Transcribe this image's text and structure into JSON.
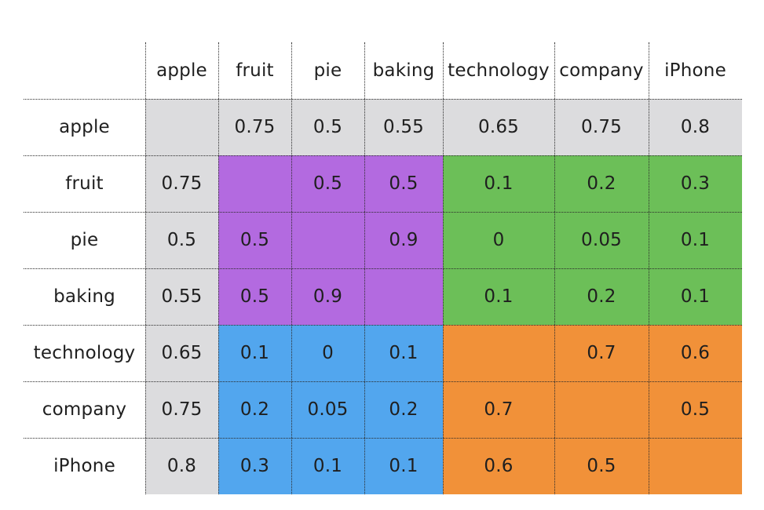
{
  "chart_data": {
    "type": "table",
    "columns": [
      "apple",
      "fruit",
      "pie",
      "baking",
      "technology",
      "company",
      "iPhone"
    ],
    "rows": [
      "apple",
      "fruit",
      "pie",
      "baking",
      "technology",
      "company",
      "iPhone"
    ],
    "values": [
      [
        "",
        "0.75",
        "0.5",
        "0.55",
        "0.65",
        "0.75",
        "0.8"
      ],
      [
        "0.75",
        "",
        "0.5",
        "0.5",
        "0.1",
        "0.2",
        "0.3"
      ],
      [
        "0.5",
        "0.5",
        "",
        "0.9",
        "0",
        "0.05",
        "0.1"
      ],
      [
        "0.55",
        "0.5",
        "0.9",
        "",
        "0.1",
        "0.2",
        "0.1"
      ],
      [
        "0.65",
        "0.1",
        "0",
        "0.1",
        "",
        "0.7",
        "0.6"
      ],
      [
        "0.75",
        "0.2",
        "0.05",
        "0.2",
        "0.7",
        "",
        "0.5"
      ],
      [
        "0.8",
        "0.3",
        "0.1",
        "0.1",
        "0.6",
        "0.5",
        ""
      ]
    ],
    "cell_colors": [
      [
        "gray",
        "gray",
        "gray",
        "gray",
        "gray",
        "gray",
        "gray"
      ],
      [
        "gray",
        "purple",
        "purple",
        "purple",
        "green",
        "green",
        "green"
      ],
      [
        "gray",
        "purple",
        "purple",
        "purple",
        "green",
        "green",
        "green"
      ],
      [
        "gray",
        "purple",
        "purple",
        "purple",
        "green",
        "green",
        "green"
      ],
      [
        "gray",
        "blue",
        "blue",
        "blue",
        "orange",
        "orange",
        "orange"
      ],
      [
        "gray",
        "blue",
        "blue",
        "blue",
        "orange",
        "orange",
        "orange"
      ],
      [
        "gray",
        "blue",
        "blue",
        "blue",
        "orange",
        "orange",
        "orange"
      ]
    ],
    "palette": {
      "gray": "#dcdcde",
      "purple": "#b36ae0",
      "green": "#6cbf58",
      "blue": "#52a6ee",
      "orange": "#f19139"
    }
  }
}
